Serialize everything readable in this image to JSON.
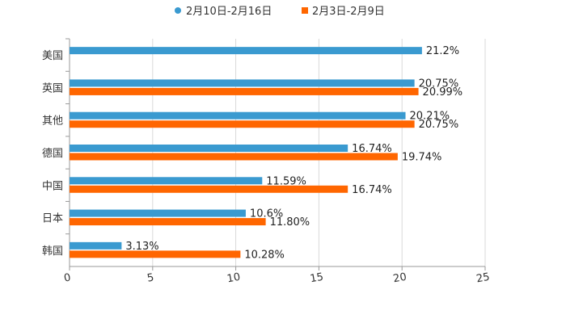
{
  "chart_data": {
    "type": "bar",
    "orientation": "horizontal",
    "title": "",
    "xlabel": "",
    "ylabel": "",
    "xlim": [
      0,
      25
    ],
    "x_ticks": [
      0,
      5,
      10,
      15,
      20,
      25
    ],
    "grid": "vertical",
    "legend_position": "top-center",
    "categories": [
      "美国",
      "英国",
      "其他",
      "德国",
      "中国",
      "日本",
      "韩国"
    ],
    "series": [
      {
        "name": "2月10日-2月16日",
        "color": "#3a9ad0",
        "legend_marker": "circle",
        "values": [
          21.2,
          20.75,
          20.21,
          16.74,
          11.59,
          10.6,
          3.13
        ],
        "labels": [
          "21.2%",
          "20.75%",
          "20.21%",
          "16.74%",
          "11.59%",
          "10.6%",
          "3.13%"
        ]
      },
      {
        "name": "2月3日-2月9日",
        "color": "#ff6600",
        "legend_marker": "square",
        "values": [
          null,
          20.99,
          20.75,
          19.74,
          16.74,
          11.8,
          10.28
        ],
        "labels": [
          null,
          "20.99%",
          "20.75%",
          "19.74%",
          "16.74%",
          "11.80%",
          "10.28%"
        ]
      }
    ]
  }
}
